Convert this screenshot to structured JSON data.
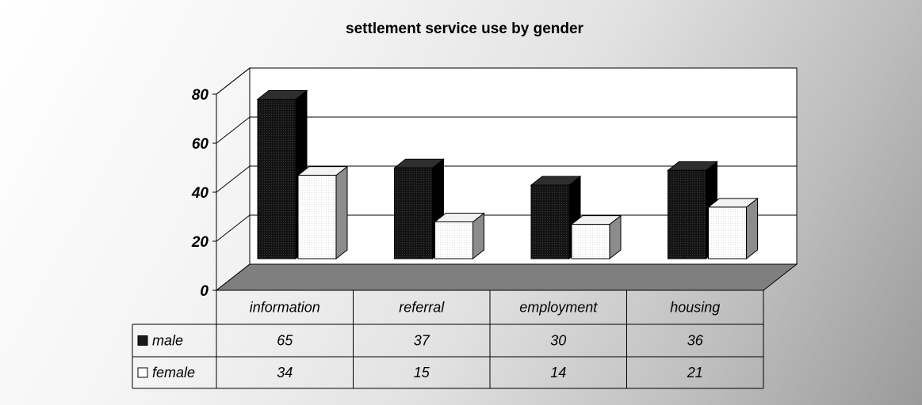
{
  "chart_data": {
    "type": "bar",
    "title": "settlement service use by gender",
    "categories": [
      "information",
      "referral",
      "employment",
      "housing"
    ],
    "series": [
      {
        "name": "male",
        "values": [
          65,
          37,
          30,
          36
        ],
        "color": "#1a1a1a"
      },
      {
        "name": "female",
        "values": [
          34,
          15,
          14,
          21
        ],
        "color": "#ffffff"
      }
    ],
    "ylim": [
      0,
      80
    ],
    "yticks": [
      0,
      20,
      40,
      60,
      80
    ],
    "grid": true,
    "legend": "data-table",
    "style": "3d-clustered-column-with-data-table",
    "floor_color": "#7f7f7f"
  }
}
